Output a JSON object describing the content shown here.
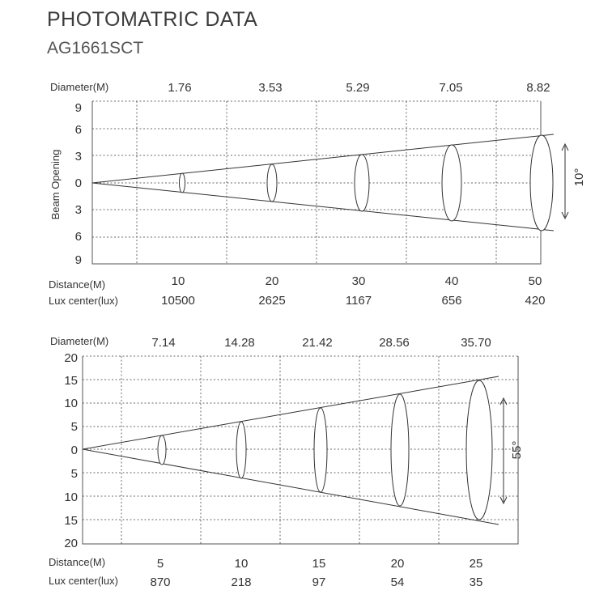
{
  "title": "PHOTOMATRIC DATA",
  "subtitle": "AG1661SCT",
  "charts": [
    {
      "diameter_label": "Diameter(M)",
      "diameters": [
        "1.76",
        "3.53",
        "5.29",
        "7.05",
        "8.82"
      ],
      "y_axis_label": "Beam Opening",
      "y_ticks": [
        "9",
        "6",
        "3",
        "0",
        "3",
        "6",
        "9"
      ],
      "distance_label": "Distance(M)",
      "distances": [
        "10",
        "20",
        "30",
        "40",
        "50"
      ],
      "lux_label": "Lux center(lux)",
      "lux": [
        "10500",
        "2625",
        "1167",
        "656",
        "420"
      ],
      "angle": "10°"
    },
    {
      "diameter_label": "Diameter(M)",
      "diameters": [
        "7.14",
        "14.28",
        "21.42",
        "28.56",
        "35.70"
      ],
      "y_ticks": [
        "20",
        "15",
        "10",
        "5",
        "0",
        "5",
        "10",
        "15",
        "20"
      ],
      "distance_label": "Distance(M)",
      "distances": [
        "5",
        "10",
        "15",
        "20",
        "25"
      ],
      "lux_label": "Lux center(lux)",
      "lux": [
        "870",
        "218",
        "97",
        "54",
        "35"
      ],
      "angle": "55°"
    }
  ],
  "chart_data": [
    {
      "type": "table",
      "beam_angle_deg": 10,
      "distance_m": [
        10,
        20,
        30,
        40,
        50
      ],
      "diameter_m": [
        1.76,
        3.53,
        5.29,
        7.05,
        8.82
      ],
      "lux_center": [
        10500,
        2625,
        1167,
        656,
        420
      ],
      "ylim": [
        -9,
        9
      ]
    },
    {
      "type": "table",
      "beam_angle_deg": 55,
      "distance_m": [
        5,
        10,
        15,
        20,
        25
      ],
      "diameter_m": [
        7.14,
        14.28,
        21.42,
        28.56,
        35.7
      ],
      "lux_center": [
        870,
        218,
        97,
        54,
        35
      ],
      "ylim": [
        -20,
        20
      ]
    }
  ]
}
